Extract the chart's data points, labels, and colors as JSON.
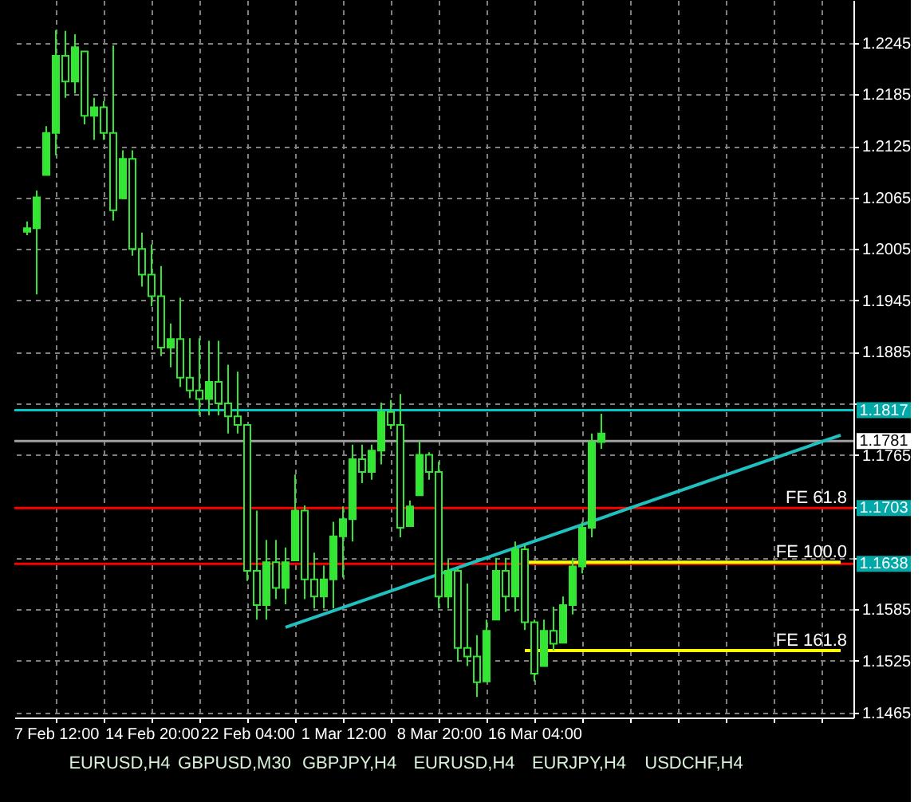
{
  "chart_data": {
    "type": "candlestick",
    "categories": [
      null,
      null,
      null,
      "7 Feb 12:00",
      null,
      null,
      null,
      null,
      null,
      null,
      null,
      null,
      null,
      "14 Feb 20:00",
      null,
      null,
      null,
      null,
      null,
      null,
      null,
      null,
      null,
      "22 Feb 04:00",
      null,
      null,
      null,
      null,
      null,
      null,
      null,
      null,
      null,
      "1 Mar 12:00",
      null,
      null,
      null,
      null,
      null,
      null,
      null,
      null,
      null,
      "8 Mar 20:00",
      null,
      null,
      null,
      null,
      null,
      null,
      null,
      null,
      null,
      "16 Mar 04:00",
      null,
      null,
      null,
      null,
      null,
      null,
      null,
      null,
      null,
      null,
      null,
      null,
      null,
      null,
      null,
      null,
      null,
      null,
      null,
      null,
      null,
      null,
      null,
      null,
      null,
      null,
      null,
      null,
      null,
      null,
      null,
      null
    ],
    "ohlc": [
      [
        1.2025,
        1.2037,
        1.2021,
        1.2029
      ],
      [
        1.2029,
        1.2073,
        1.1952,
        1.2065
      ],
      [
        1.2091,
        1.2148,
        1.2091,
        1.214
      ],
      [
        1.214,
        1.226,
        1.2114,
        1.223
      ],
      [
        1.223,
        1.2259,
        1.2181,
        1.22
      ],
      [
        1.22,
        1.2255,
        1.2186,
        1.224
      ],
      [
        1.2235,
        1.2235,
        1.215,
        1.216
      ],
      [
        1.216,
        1.2181,
        1.2132,
        1.217
      ],
      [
        1.217,
        1.2177,
        1.2132,
        1.214
      ],
      [
        1.214,
        1.2242,
        1.2038,
        1.205
      ],
      [
        1.2064,
        1.212,
        1.2064,
        1.211
      ],
      [
        1.211,
        1.212,
        1.1997,
        1.2005
      ],
      [
        1.2005,
        1.2024,
        1.1961,
        1.1975
      ],
      [
        1.1975,
        1.201,
        1.1938,
        1.195
      ],
      [
        1.195,
        1.1985,
        1.188,
        1.189
      ],
      [
        1.189,
        1.1918,
        1.1867,
        1.19
      ],
      [
        1.19,
        1.1948,
        1.1844,
        1.1855
      ],
      [
        1.1855,
        1.1901,
        1.1831,
        1.184
      ],
      [
        1.184,
        1.1901,
        1.1811,
        1.183
      ],
      [
        1.183,
        1.1898,
        1.1811,
        1.185
      ],
      [
        1.185,
        1.1898,
        1.1811,
        1.1825
      ],
      [
        1.1825,
        1.187,
        1.179,
        1.181
      ],
      [
        1.181,
        1.1862,
        1.179,
        1.18
      ],
      [
        1.18,
        1.18,
        1.1618,
        1.163
      ],
      [
        1.163,
        1.17,
        1.1573,
        1.159
      ],
      [
        1.159,
        1.1666,
        1.1573,
        1.164
      ],
      [
        1.164,
        1.1666,
        1.1597,
        1.161
      ],
      [
        1.161,
        1.1657,
        1.1591,
        1.164
      ],
      [
        1.1642,
        1.1742,
        1.1642,
        1.17
      ],
      [
        1.17,
        1.1706,
        1.1597,
        1.162
      ],
      [
        1.162,
        1.1651,
        1.1586,
        1.16
      ],
      [
        1.16,
        1.1636,
        1.1586,
        1.162
      ],
      [
        1.162,
        1.1687,
        1.1586,
        1.167
      ],
      [
        1.167,
        1.1705,
        1.1622,
        1.169
      ],
      [
        1.169,
        1.1777,
        1.1664,
        1.176
      ],
      [
        1.176,
        1.1777,
        1.1732,
        1.1745
      ],
      [
        1.1745,
        1.1777,
        1.1736,
        1.177
      ],
      [
        1.177,
        1.1826,
        1.1754,
        1.1815
      ],
      [
        1.1815,
        1.1829,
        1.1795,
        1.18
      ],
      [
        1.18,
        1.1836,
        1.1669,
        1.168
      ],
      [
        1.1682,
        1.1712,
        1.1682,
        1.1705
      ],
      [
        1.1718,
        1.1781,
        1.1718,
        1.1765
      ],
      [
        1.1765,
        1.1768,
        1.1736,
        1.1745
      ],
      [
        1.1745,
        1.1757,
        1.1586,
        1.16
      ],
      [
        1.16,
        1.1643,
        1.1586,
        1.163
      ],
      [
        1.163,
        1.1633,
        1.1524,
        1.154
      ],
      [
        1.154,
        1.1615,
        1.1519,
        1.153
      ],
      [
        1.153,
        1.1555,
        1.1483,
        1.15
      ],
      [
        1.1501,
        1.1573,
        1.1501,
        1.156
      ],
      [
        1.1573,
        1.1645,
        1.1573,
        1.163
      ],
      [
        1.163,
        1.1645,
        1.1582,
        1.16
      ],
      [
        1.16,
        1.1664,
        1.1582,
        1.1655
      ],
      [
        1.1655,
        1.166,
        1.1561,
        1.157
      ],
      [
        1.157,
        1.1573,
        1.1501,
        1.151
      ],
      [
        1.1519,
        1.1573,
        1.1519,
        1.156
      ],
      [
        1.156,
        1.1588,
        1.1537,
        1.1545
      ],
      [
        1.1546,
        1.16,
        1.1546,
        1.159
      ],
      [
        1.159,
        1.1645,
        1.1579,
        1.1635
      ],
      [
        1.1635,
        1.1687,
        1.1627,
        1.168
      ],
      [
        1.168,
        1.179,
        1.1669,
        1.178
      ],
      [
        1.178,
        1.1813,
        1.1772,
        1.179
      ],
      null,
      null,
      null,
      null,
      null,
      null,
      null,
      null,
      null,
      null,
      null,
      null,
      null,
      null,
      null,
      null,
      null,
      null,
      null,
      null,
      null,
      null,
      null,
      null,
      null
    ],
    "color": "#33e633",
    "series": [
      {
        "type": "line",
        "color": "#20c0c0",
        "values": [
          null,
          null,
          null,
          null,
          null,
          null,
          null,
          null,
          null,
          null,
          null,
          null,
          null,
          null,
          null,
          null,
          null,
          null,
          null,
          null,
          null,
          null,
          null,
          null,
          null,
          null,
          null,
          1.1564,
          null,
          null,
          null,
          null,
          null,
          null,
          null,
          null,
          null,
          null,
          null,
          null,
          null,
          null,
          null,
          null,
          null,
          null,
          null,
          null,
          null,
          null,
          null,
          null,
          null,
          null,
          null,
          null,
          null,
          null,
          null,
          null,
          null,
          null,
          null,
          null,
          null,
          null,
          null,
          null,
          null,
          null,
          null,
          null,
          null,
          null,
          null,
          null,
          null,
          null,
          null,
          null,
          null,
          null,
          null,
          null,
          null,
          1.1788
        ]
      },
      {
        "type": "line",
        "color": "#ffff00",
        "values": [
          null,
          null,
          null,
          null,
          null,
          null,
          null,
          null,
          null,
          null,
          null,
          null,
          null,
          null,
          null,
          null,
          null,
          null,
          null,
          null,
          null,
          null,
          null,
          null,
          null,
          null,
          null,
          null,
          null,
          null,
          null,
          null,
          null,
          null,
          null,
          null,
          null,
          null,
          null,
          null,
          null,
          null,
          null,
          null,
          null,
          null,
          null,
          null,
          null,
          null,
          null,
          null,
          1.164,
          null,
          null,
          null,
          null,
          null,
          null,
          null,
          null,
          null,
          null,
          null,
          null,
          null,
          null,
          null,
          null,
          null,
          null,
          null,
          null,
          null,
          null,
          null,
          null,
          null,
          null,
          null,
          null,
          null,
          null,
          null,
          null,
          1.164
        ]
      },
      {
        "type": "line",
        "color": "#ffff00",
        "values": [
          null,
          null,
          null,
          null,
          null,
          null,
          null,
          null,
          null,
          null,
          null,
          null,
          null,
          null,
          null,
          null,
          null,
          null,
          null,
          null,
          null,
          null,
          null,
          null,
          null,
          null,
          null,
          null,
          null,
          null,
          null,
          null,
          null,
          null,
          null,
          null,
          null,
          null,
          null,
          null,
          null,
          null,
          null,
          null,
          null,
          null,
          null,
          null,
          null,
          null,
          null,
          null,
          1.1537,
          null,
          null,
          null,
          null,
          null,
          null,
          null,
          null,
          null,
          null,
          null,
          null,
          null,
          null,
          null,
          null,
          null,
          null,
          null,
          null,
          null,
          null,
          null,
          null,
          null,
          null,
          null,
          null,
          null,
          null,
          null,
          null,
          1.1537
        ]
      }
    ],
    "ylim": [
      1.1459,
      1.2295
    ],
    "yticks": [
      1.2245,
      1.2185,
      1.2125,
      1.2065,
      1.2005,
      1.1945,
      1.1885,
      {
        "value": 1.1825,
        "label": null
      },
      1.1765,
      {
        "value": 1.1705,
        "label": null
      },
      {
        "value": 1.1645,
        "label": null
      },
      1.1585,
      1.1525,
      1.1465
    ],
    "grid": true,
    "ref_lines": [
      {
        "axis": "y",
        "value": 1.1817,
        "label": "1.1817",
        "color": "#00c8c8"
      },
      {
        "axis": "y",
        "value": 1.1781,
        "label": "1.1781",
        "color": "#a0a0a0"
      },
      {
        "axis": "y",
        "value": 1.1703,
        "label": "1.1703",
        "color": "#ff0000"
      },
      {
        "axis": "y",
        "value": 1.1638,
        "label": "1.1638",
        "color": "#ff0000"
      }
    ],
    "annotations": [
      {
        "text": "FE 61.8",
        "y": 1.1703
      },
      {
        "text": "FE 100.0",
        "y": 1.164
      },
      {
        "text": "FE 161.8",
        "y": 1.1537
      },
      "EURUSD,H4",
      "GBPUSD,M30",
      "GBPJPY,H4",
      "EURUSD,H4",
      "EURJPY,H4",
      "USDCHF,H4"
    ]
  }
}
